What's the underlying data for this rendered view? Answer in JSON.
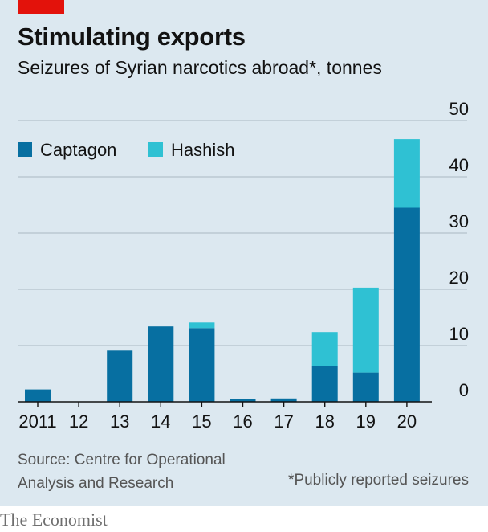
{
  "header": {
    "title": "Stimulating exports",
    "subtitle": "Seizures of Syrian narcotics abroad*, tonnes"
  },
  "colors": {
    "captagon": "#076fa1",
    "hashish": "#2fc1d3",
    "background": "#dce8f0",
    "accent": "#e3120b"
  },
  "footer": {
    "source_line1": "Source: Centre for Operational",
    "source_line2": "Analysis and Research",
    "footnote": "*Publicly reported seizures",
    "brand": "The Economist"
  },
  "chart_data": {
    "type": "bar",
    "stacked": true,
    "title": "Stimulating exports",
    "subtitle": "Seizures of Syrian narcotics abroad*, tonnes",
    "categories": [
      "2011",
      "12",
      "13",
      "14",
      "15",
      "16",
      "17",
      "18",
      "19",
      "20"
    ],
    "series": [
      {
        "name": "Captagon",
        "color": "#076fa1",
        "values": [
          2.2,
          0,
          9.1,
          13.4,
          13.1,
          0.5,
          0.6,
          6.4,
          5.2,
          34.5
        ]
      },
      {
        "name": "Hashish",
        "color": "#2fc1d3",
        "values": [
          0,
          0,
          0,
          0,
          1.0,
          0,
          0,
          6.0,
          15.1,
          12.2
        ]
      }
    ],
    "ylim": [
      0,
      50
    ],
    "yticks": [
      "0",
      "10",
      "20",
      "30",
      "40",
      "50"
    ],
    "y_axis_side": "right",
    "grid": true,
    "legend_position": "top-left"
  }
}
